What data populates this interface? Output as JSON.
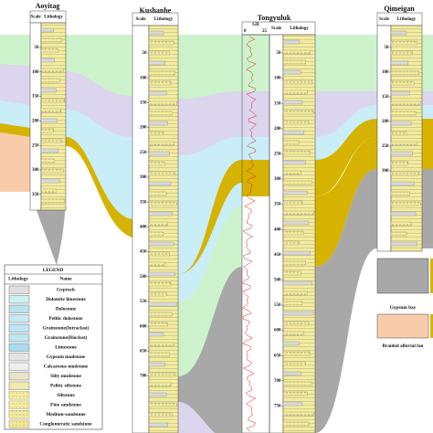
{
  "columns": [
    {
      "name": "Aoyitag",
      "scale_label": "Scale",
      "lithology_label": "Lithology",
      "depths": [
        50,
        100,
        150,
        200,
        250,
        300,
        350
      ]
    },
    {
      "name": "Kushanhe",
      "scale_label": "Scale",
      "lithology_label": "Lithology",
      "depths": [
        50,
        100,
        150,
        200,
        250,
        300,
        350,
        400,
        450,
        500,
        550,
        600,
        650,
        700
      ]
    },
    {
      "name": "Tongyuluk",
      "scale_label": "Scale",
      "lithology_label": "Lithology",
      "gr_label": "GR",
      "gr_min": "0",
      "gr_max": "25",
      "depths": [
        50,
        100,
        150,
        200,
        250,
        300,
        350,
        400,
        450,
        500,
        550,
        600,
        650,
        700,
        750
      ]
    },
    {
      "name": "Qimeigan",
      "scale_label": "Scale",
      "lithology_label": "Lithology",
      "depths": [
        50,
        100,
        150,
        200,
        250,
        300
      ]
    }
  ],
  "legend": {
    "title": "LEGEND",
    "lithology_header": "Lithology",
    "name_header": "Name",
    "items": [
      "Gyprock",
      "Dolomite limestone",
      "Dolostone",
      "Pelitic dolostone",
      "Grainstone(Intraclast)",
      "Grainstone(Bioclast)",
      "Limestone",
      "Gypsum mudstone",
      "Calcareous mudstone",
      "Silty mudstone",
      "Pelitic siltstone",
      "Siltstone",
      "Fine sandstone",
      "Medium-sandstone",
      "Conglomeratic sandstone"
    ]
  },
  "facies_legend": [
    "Gypsum bay",
    "Braided alluvial fan"
  ]
}
